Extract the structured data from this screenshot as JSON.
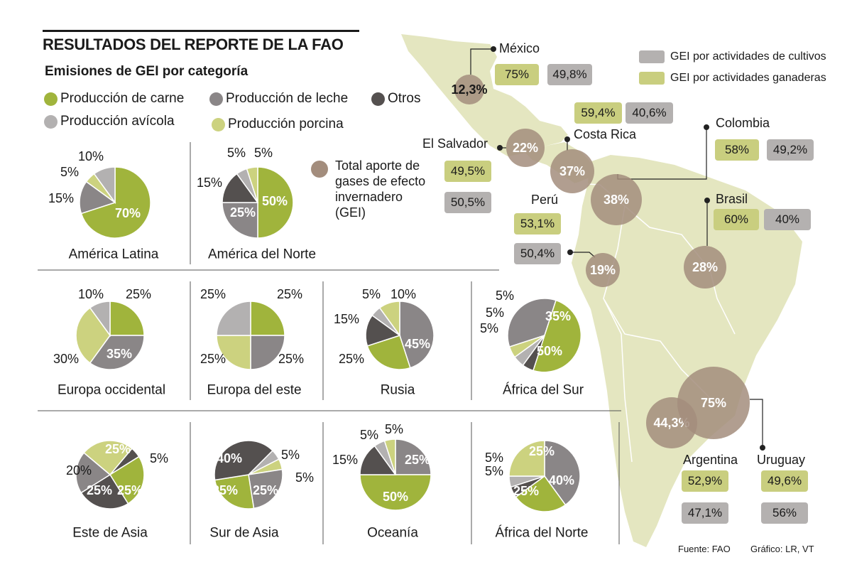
{
  "title": "RESULTADOS DEL REPORTE DE LA FAO",
  "subtitle": "Emisiones de GEI por categoría",
  "colors": {
    "carne": "#a0b43c",
    "leche": "#8a8687",
    "otros": "#54504f",
    "avicola": "#b3b1b1",
    "porcina": "#ccd27f",
    "total": "#a38d7d",
    "cultivos": "#b4b1b0",
    "ganaderas": "#c9ce7f",
    "map_land": "#e4e6c0",
    "map_border": "#ffffff"
  },
  "legend": [
    {
      "key": "carne",
      "label": "Producción de carne"
    },
    {
      "key": "leche",
      "label": "Producción de leche"
    },
    {
      "key": "otros",
      "label": "Otros"
    },
    {
      "key": "avicola",
      "label": "Producción avícola"
    },
    {
      "key": "porcina",
      "label": "Producción porcina"
    }
  ],
  "total_legend": "Total aporte de gases de efecto invernadero (GEI)",
  "map_legend": {
    "cultivos": "GEI por actividades de cultivos",
    "ganaderas": "GEI por actividades ganaderas"
  },
  "chart_data": [
    {
      "type": "pie",
      "title": "América Latina",
      "series": [
        {
          "name": "Producción de carne",
          "key": "carne",
          "value": 70,
          "label": "70%"
        },
        {
          "name": "Producción de leche",
          "key": "leche",
          "value": 15,
          "label": "15%"
        },
        {
          "name": "Producción porcina",
          "key": "porcina",
          "value": 5,
          "label": "5%"
        },
        {
          "name": "Producción avícola",
          "key": "avicola",
          "value": 10,
          "label": "10%"
        }
      ]
    },
    {
      "type": "pie",
      "title": "América del Norte",
      "series": [
        {
          "name": "Producción de carne",
          "key": "carne",
          "value": 50,
          "label": "50%"
        },
        {
          "name": "Producción de leche",
          "key": "leche",
          "value": 25,
          "label": "25%"
        },
        {
          "name": "Otros",
          "key": "otros",
          "value": 15,
          "label": "15%"
        },
        {
          "name": "Producción avícola",
          "key": "avicola",
          "value": 5,
          "label": "5%"
        },
        {
          "name": "Producción porcina",
          "key": "porcina",
          "value": 5,
          "label": "5%"
        }
      ]
    },
    {
      "type": "pie",
      "title": "Europa occidental",
      "series": [
        {
          "name": "Producción de carne",
          "key": "carne",
          "value": 25,
          "label": "25%"
        },
        {
          "name": "Producción de leche",
          "key": "leche",
          "value": 35,
          "label": "35%"
        },
        {
          "name": "Producción porcina",
          "key": "porcina",
          "value": 30,
          "label": "30%"
        },
        {
          "name": "Producción avícola",
          "key": "avicola",
          "value": 10,
          "label": "10%"
        }
      ]
    },
    {
      "type": "pie",
      "title": "Europa del este",
      "series": [
        {
          "name": "Producción de carne",
          "key": "carne",
          "value": 25,
          "label": "25%"
        },
        {
          "name": "Producción de leche",
          "key": "leche",
          "value": 25,
          "label": "25%"
        },
        {
          "name": "Producción porcina",
          "key": "porcina",
          "value": 25,
          "label": "25%"
        },
        {
          "name": "Producción avícola",
          "key": "avicola",
          "value": 25,
          "label": "25%"
        }
      ]
    },
    {
      "type": "pie",
      "title": "Rusia",
      "series": [
        {
          "name": "Producción de leche",
          "key": "leche",
          "value": 45,
          "label": "45%"
        },
        {
          "name": "Producción de carne",
          "key": "carne",
          "value": 25,
          "label": "25%"
        },
        {
          "name": "Otros",
          "key": "otros",
          "value": 15,
          "label": "15%"
        },
        {
          "name": "Producción avícola",
          "key": "avicola",
          "value": 5,
          "label": "5%"
        },
        {
          "name": "Producción porcina",
          "key": "porcina",
          "value": 10,
          "label": "10%"
        }
      ]
    },
    {
      "type": "pie",
      "title": "África del Sur",
      "series": [
        {
          "name": "Producción de leche",
          "key": "leche",
          "value": 35,
          "label": "35%"
        },
        {
          "name": "Producción de carne",
          "key": "carne",
          "value": 50,
          "label": "50%"
        },
        {
          "name": "Otros",
          "key": "otros",
          "value": 5,
          "label": "5%"
        },
        {
          "name": "Producción avícola",
          "key": "avicola",
          "value": 5,
          "label": "5%"
        },
        {
          "name": "Producción porcina",
          "key": "porcina",
          "value": 5,
          "label": "5%"
        }
      ]
    },
    {
      "type": "pie",
      "title": "Este de Asia",
      "series": [
        {
          "name": "Otros",
          "key": "otros",
          "value": 5,
          "label": "5%"
        },
        {
          "name": "Producción de carne",
          "key": "carne",
          "value": 25,
          "label": "25%"
        },
        {
          "name": "Otros",
          "key": "otros",
          "value": 25,
          "label": "25%"
        },
        {
          "name": "Producción de leche",
          "key": "leche",
          "value": 20,
          "label": "20%"
        },
        {
          "name": "Producción porcina",
          "key": "porcina",
          "value": 25,
          "label": "25%"
        }
      ]
    },
    {
      "type": "pie",
      "title": "Sur de Asia",
      "series": [
        {
          "name": "Producción avícola",
          "key": "avicola",
          "value": 5,
          "label": "5%"
        },
        {
          "name": "Producción porcina",
          "key": "porcina",
          "value": 5,
          "label": "5%"
        },
        {
          "name": "Producción de leche",
          "key": "leche",
          "value": 25,
          "label": "25%"
        },
        {
          "name": "Producción de carne",
          "key": "carne",
          "value": 25,
          "label": "25%"
        },
        {
          "name": "Otros",
          "key": "otros",
          "value": 40,
          "label": "40%"
        }
      ]
    },
    {
      "type": "pie",
      "title": "Oceanía",
      "series": [
        {
          "name": "Producción de leche",
          "key": "leche",
          "value": 25,
          "label": "25%"
        },
        {
          "name": "Producción de carne",
          "key": "carne",
          "value": 50,
          "label": "50%"
        },
        {
          "name": "Otros",
          "key": "otros",
          "value": 15,
          "label": "15%"
        },
        {
          "name": "Producción avícola",
          "key": "avicola",
          "value": 5,
          "label": "5%"
        },
        {
          "name": "Producción porcina",
          "key": "porcina",
          "value": 5,
          "label": "5%"
        }
      ]
    },
    {
      "type": "pie",
      "title": "África del Norte",
      "series": [
        {
          "name": "Producción de leche",
          "key": "leche",
          "value": 40,
          "label": "40%"
        },
        {
          "name": "Producción de carne",
          "key": "carne",
          "value": 25,
          "label": "25%"
        },
        {
          "name": "Otros",
          "key": "otros",
          "value": 5,
          "label": "5%"
        },
        {
          "name": "Producción avícola",
          "key": "avicola",
          "value": 5,
          "label": "5%"
        },
        {
          "name": "Producción porcina",
          "key": "porcina",
          "value": 25,
          "label": "25%"
        }
      ]
    }
  ],
  "countries": [
    {
      "name": "México",
      "total": "12,3%",
      "ganaderas": "75%",
      "cultivos": "49,8%"
    },
    {
      "name": "Costa Rica",
      "total": "37%",
      "ganaderas": "59,4%",
      "cultivos": "40,6%"
    },
    {
      "name": "El Salvador",
      "total": "22%",
      "ganaderas": "49,5%",
      "cultivos": "50,5%"
    },
    {
      "name": "Colombia",
      "total": "38%",
      "ganaderas": "58%",
      "cultivos": "49,2%"
    },
    {
      "name": "Perú",
      "total": "19%",
      "ganaderas": "53,1%",
      "cultivos": "50,4%"
    },
    {
      "name": "Brasil",
      "total": "28%",
      "ganaderas": "60%",
      "cultivos": "40%"
    },
    {
      "name": "Argentina",
      "total": "44,3%",
      "ganaderas": "52,9%",
      "cultivos": "47,1%"
    },
    {
      "name": "Uruguay",
      "total": "75%",
      "ganaderas": "49,6%",
      "cultivos": "56%"
    }
  ],
  "footer": {
    "source": "Fuente: FAO",
    "credit": "Gráfico: LR, VT"
  }
}
